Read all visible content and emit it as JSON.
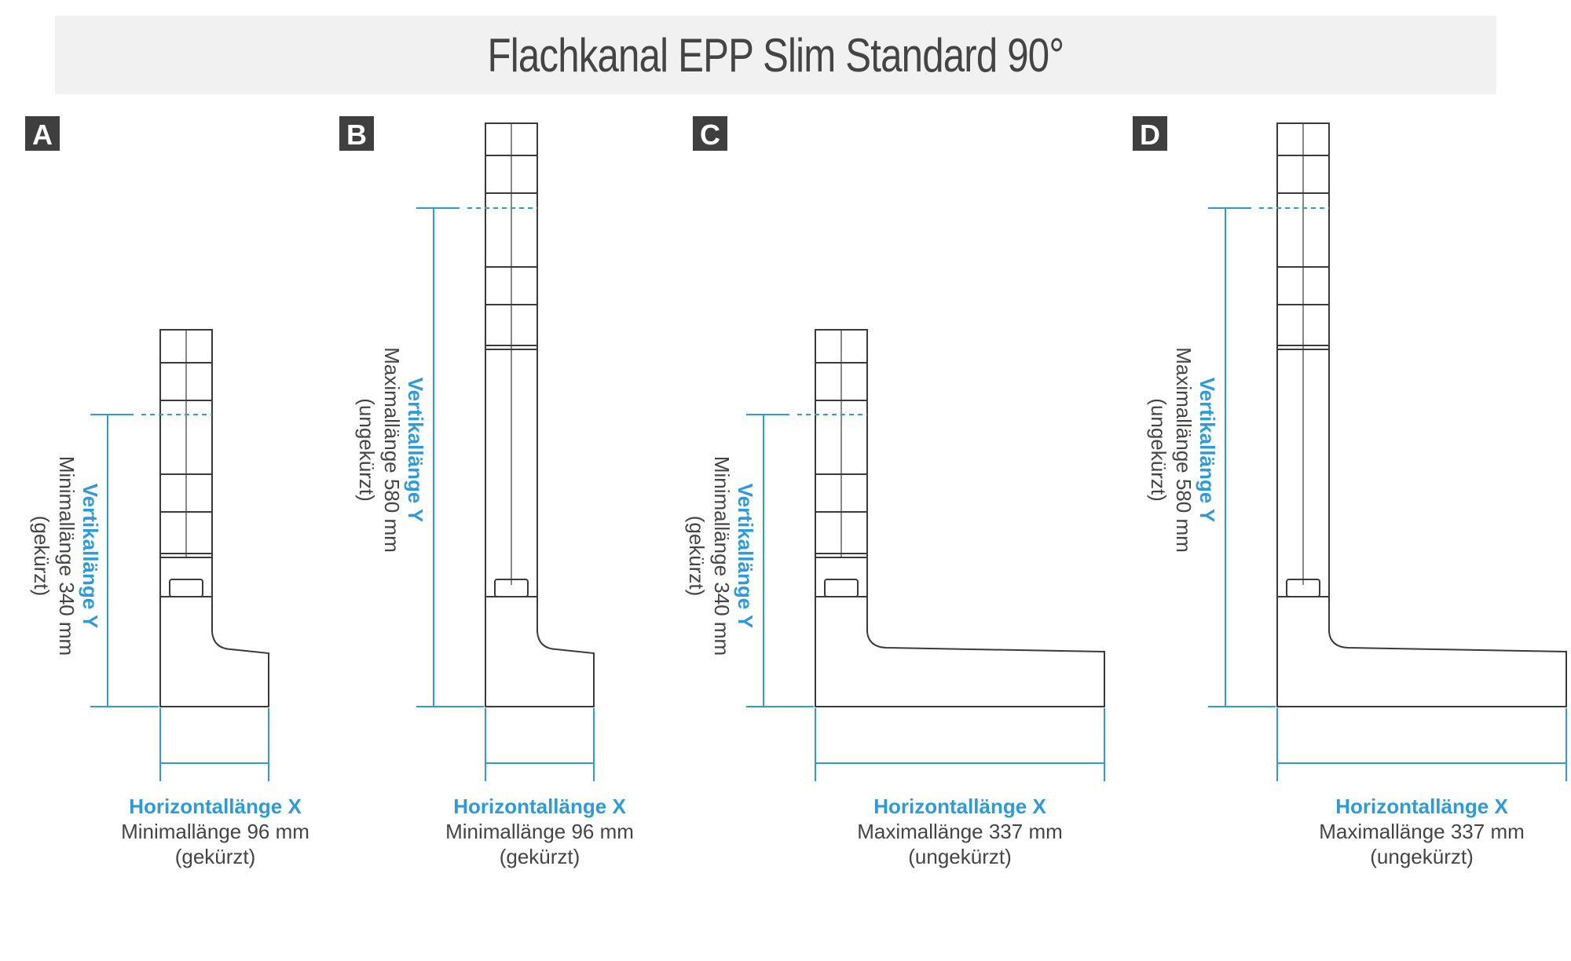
{
  "title": "Flachkanal EPP Slim Standard 90°",
  "colors": {
    "accent": "#2f9ad8",
    "outline": "#3a3a3a",
    "badge": "#3f3f3f",
    "header_bg": "#f1f1f1"
  },
  "variants": [
    {
      "id": "A",
      "vertical": {
        "label": "Vertikallänge Y",
        "value": "Minimallänge 340 mm",
        "note": "(gekürzt)"
      },
      "horizontal": {
        "label": "Horizontallänge X",
        "value": "Minimallänge 96 mm",
        "note": "(gekürzt)"
      }
    },
    {
      "id": "B",
      "vertical": {
        "label": "Vertikallänge Y",
        "value": "Maximallänge 580 mm",
        "note": "(ungekürzt)"
      },
      "horizontal": {
        "label": "Horizontallänge X",
        "value": "Minimallänge 96 mm",
        "note": "(gekürzt)"
      }
    },
    {
      "id": "C",
      "vertical": {
        "label": "Vertikallänge Y",
        "value": "Minimallänge 340 mm",
        "note": "(gekürzt)"
      },
      "horizontal": {
        "label": "Horizontallänge X",
        "value": "Maximallänge 337 mm",
        "note": "(ungekürzt)"
      }
    },
    {
      "id": "D",
      "vertical": {
        "label": "Vertikallänge Y",
        "value": "Maximallänge 580 mm",
        "note": "(ungekürzt)"
      },
      "horizontal": {
        "label": "Horizontallänge X",
        "value": "Maximallänge 337 mm",
        "note": "(ungekürzt)"
      }
    }
  ]
}
